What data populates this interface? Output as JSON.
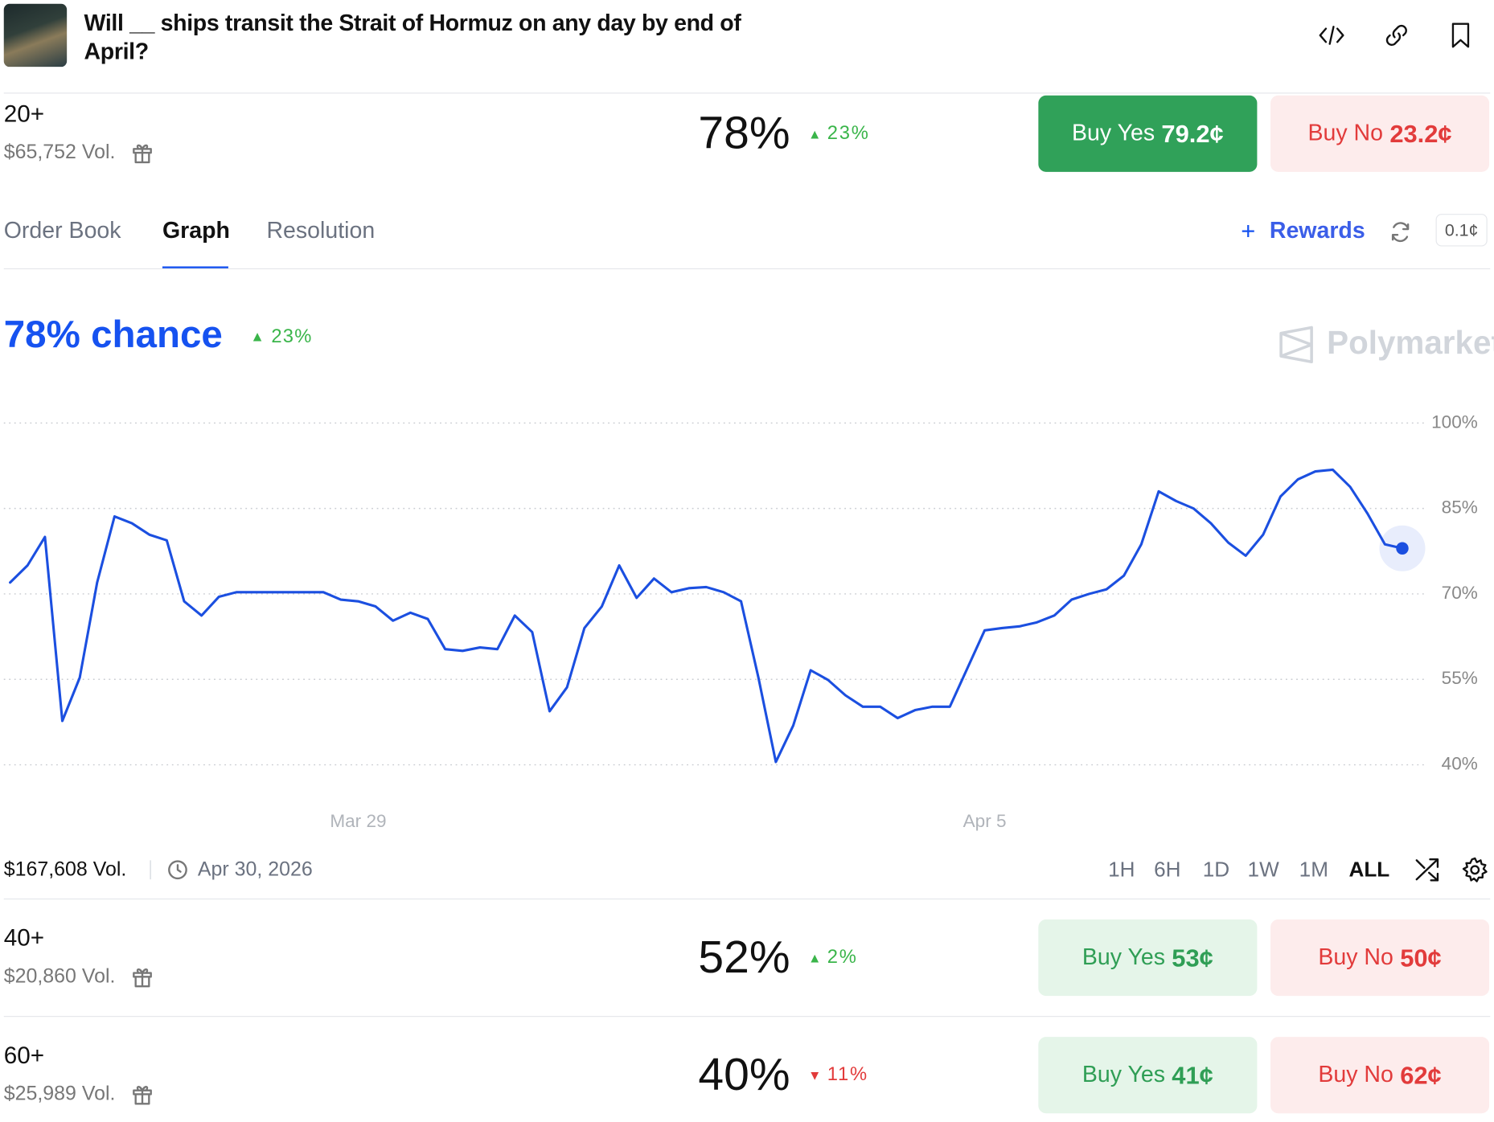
{
  "header": {
    "title": "Will __ ships transit the Strait of Hormuz on any day by end of April?"
  },
  "markets": [
    {
      "label": "20+",
      "volume": "$65,752 Vol.",
      "chance": "78%",
      "change": "23%",
      "trend": "up",
      "change_color": "#3ab54a",
      "buy_yes": "Buy Yes",
      "yes_price": "79.2¢",
      "buy_no": "Buy No",
      "no_price": "23.2¢",
      "yes_fill": "#30a159",
      "yes_text": "#ffffff",
      "no_fill": "#fdecec",
      "no_text": "#e23b3b"
    },
    {
      "label": "40+",
      "volume": "$20,860 Vol.",
      "chance": "52%",
      "change": "2%",
      "trend": "up",
      "change_color": "#3ab54a",
      "buy_yes": "Buy Yes",
      "yes_price": "53¢",
      "buy_no": "Buy No",
      "no_price": "50¢",
      "yes_fill": "#e5f5e9",
      "yes_text": "#2f9e55",
      "no_fill": "#fdecec",
      "no_text": "#e23b3b"
    },
    {
      "label": "60+",
      "volume": "$25,989 Vol.",
      "chance": "40%",
      "change": "11%",
      "trend": "down",
      "change_color": "#e23b3b",
      "buy_yes": "Buy Yes",
      "yes_price": "41¢",
      "buy_no": "Buy No",
      "no_price": "62¢",
      "yes_fill": "#e5f5e9",
      "yes_text": "#2f9e55",
      "no_fill": "#fdecec",
      "no_text": "#e23b3b"
    }
  ],
  "tabs": [
    "Order Book",
    "Graph",
    "Resolution"
  ],
  "selected_tab": 1,
  "rewards": "Rewards",
  "tick_size": "0.1¢",
  "chance_text": "78% chance",
  "chance_change": "23%",
  "watermark": "Polymarket",
  "total_volume": "$167,608 Vol.",
  "end_date": "Apr 30, 2026",
  "timeframes": [
    "1H",
    "6H",
    "1D",
    "1W",
    "1M",
    "ALL"
  ],
  "selected_timeframe": 5,
  "chart_data": {
    "type": "line",
    "categories": [
      null,
      null,
      null,
      null,
      null,
      null,
      null,
      null,
      null,
      null,
      null,
      null,
      null,
      null,
      null,
      null,
      null,
      null,
      null,
      null,
      "Mar 29",
      null,
      null,
      null,
      null,
      null,
      null,
      null,
      null,
      null,
      null,
      null,
      null,
      null,
      null,
      null,
      null,
      null,
      null,
      null,
      null,
      null,
      null,
      null,
      null,
      null,
      null,
      null,
      null,
      null,
      null,
      null,
      null,
      null,
      null,
      null,
      "Apr 5",
      null,
      null,
      null,
      null,
      null,
      null,
      null,
      null,
      null,
      null,
      null,
      null,
      null,
      null,
      null,
      null,
      null,
      null,
      null,
      null,
      null,
      null,
      null,
      null
    ],
    "series": [
      {
        "color": "#1b4fe0",
        "values": [
          72,
          75,
          80,
          47.7,
          55.3,
          72,
          83.6,
          82.4,
          80.4,
          79.4,
          68.7,
          66.2,
          69.5,
          70.3,
          70.3,
          70.3,
          70.3,
          70.3,
          70.3,
          69,
          68.7,
          67.8,
          65.3,
          66.7,
          65.6,
          60.3,
          60,
          60.6,
          60.3,
          66.2,
          63.3,
          49.4,
          53.6,
          64,
          67.8,
          75,
          69.3,
          72.7,
          70.3,
          71,
          71.2,
          70.3,
          68.7,
          55.3,
          40.5,
          46.9,
          56.6,
          54.9,
          52.2,
          50.2,
          50.2,
          48.2,
          49.6,
          50.2,
          50.2,
          56.9,
          63.6,
          64,
          64.3,
          65,
          66.2,
          69,
          70,
          70.8,
          73.2,
          78.7,
          88,
          86.3,
          85,
          82.4,
          79,
          76.7,
          80.4,
          87.1,
          90.1,
          91.5,
          91.8,
          88.8,
          84.1,
          78.7,
          78
        ]
      }
    ],
    "ylim": [
      40,
      100
    ],
    "yticks": [
      {
        "value": 40,
        "label": "40%"
      },
      {
        "value": 55,
        "label": "55%"
      },
      {
        "value": 70,
        "label": "70%"
      },
      {
        "value": 85,
        "label": "85%"
      },
      {
        "value": 100,
        "label": "100%"
      }
    ],
    "grid": true
  }
}
